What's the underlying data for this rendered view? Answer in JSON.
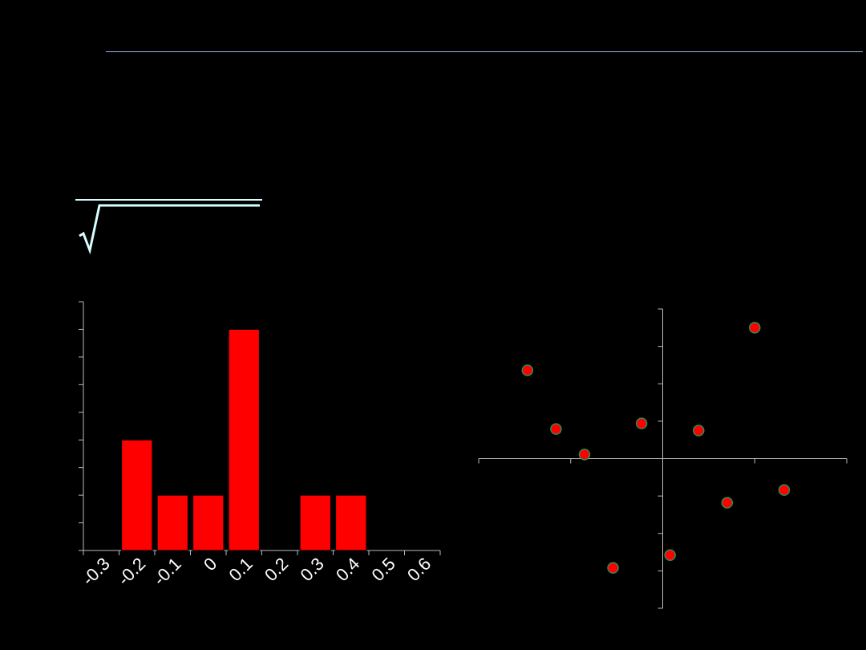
{
  "chart_data": [
    {
      "type": "bar",
      "categories": [
        "-0.3",
        "-0.2",
        "-0.1",
        "0",
        "0.1",
        "0.2",
        "0.3",
        "0.4",
        "0.5",
        "0.6"
      ],
      "values": [
        0,
        4,
        2,
        2,
        8,
        0,
        2,
        2,
        0,
        0
      ],
      "color": "#ff0000",
      "ylim": [
        0,
        9
      ],
      "yticks": [
        0,
        1,
        2,
        3,
        4,
        5,
        6,
        7,
        8,
        9
      ]
    },
    {
      "type": "scatter",
      "x": [
        -1.47,
        -1.16,
        -0.85,
        -0.23,
        0.39,
        1.0,
        1.32,
        0.7,
        0.08,
        -0.54
      ],
      "y": [
        2.36,
        0.79,
        0.11,
        0.94,
        0.75,
        3.5,
        -0.84,
        -1.18,
        -2.58,
        -2.92
      ],
      "color": "#ff0000",
      "edgecolor": "#2e8b57",
      "xlim": [
        -2,
        2
      ],
      "xticks": [
        -2,
        -1,
        0,
        1,
        2
      ],
      "ylim": [
        -4,
        4
      ],
      "yticks": [
        -4,
        -3,
        -2,
        -1,
        0,
        1,
        2,
        3,
        4
      ]
    }
  ]
}
